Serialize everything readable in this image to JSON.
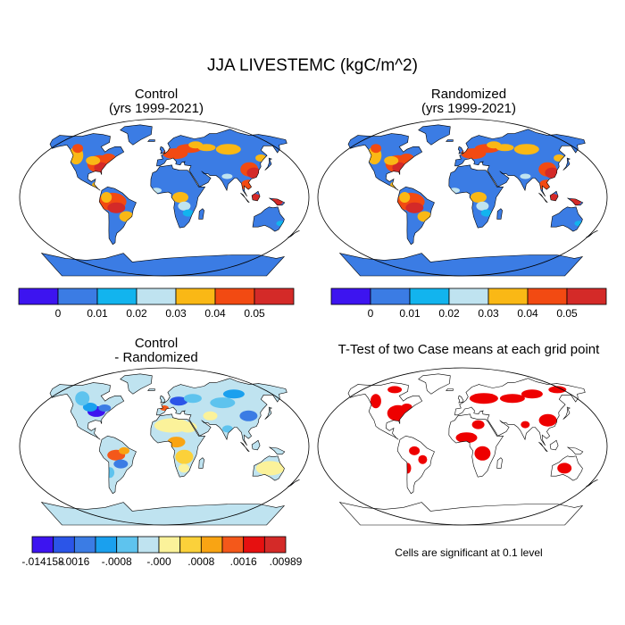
{
  "figure": {
    "title": "JJA LIVESTEMC (kgC/m^2)",
    "note": "Cells are significant at 0.1 level"
  },
  "panels": [
    {
      "id": "control",
      "title": "Control",
      "subtitle": "(yrs 1999-2021)"
    },
    {
      "id": "randomized",
      "title": "Randomized",
      "subtitle": "(yrs 1999-2021)"
    },
    {
      "id": "difference",
      "title": "Control",
      "subtitle": "- Randomized"
    },
    {
      "id": "ttest",
      "title": "T-Test of two Case means at each grid point"
    }
  ],
  "colorbars": {
    "main": {
      "colors": [
        "#3d14f0",
        "#3b7ce4",
        "#12b4ee",
        "#bfe3f0",
        "#fab815",
        "#f24a12",
        "#d42a28"
      ],
      "labels": [
        "0",
        "0.01",
        "0.02",
        "0.03",
        "0.04",
        "0.05"
      ]
    },
    "diff": {
      "colors": [
        "#3d14f0",
        "#2b55e8",
        "#3b7ce4",
        "#1aa0ee",
        "#5ec3ee",
        "#bfe3f0",
        "#fbf29a",
        "#fbd13a",
        "#f9a413",
        "#f4581a",
        "#e61010",
        "#d42a28"
      ],
      "labels": [
        "-.014158",
        "-.0016",
        "-.0008",
        "-.000",
        ".0008",
        ".0016",
        ".00989"
      ]
    }
  },
  "colors": {
    "ocean": "#ffffff",
    "coast": "#000000",
    "land_base": "#3b7ce4",
    "land_diff_base": "#bfe3f0",
    "significant": "#ee0000"
  }
}
